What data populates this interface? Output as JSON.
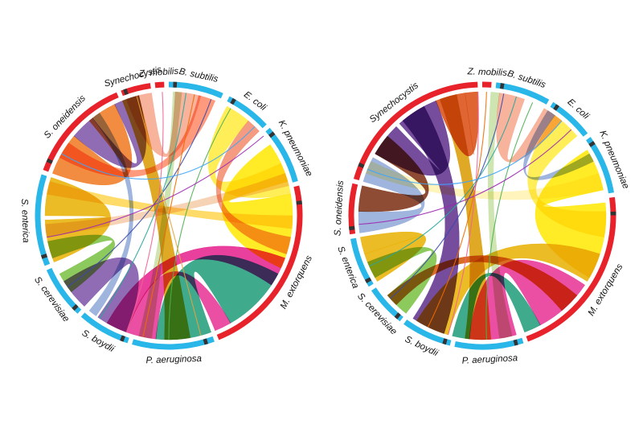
{
  "diagrams": [
    {
      "id": "left",
      "groups": [
        {
          "name": "B. subtilis",
          "start": 0,
          "end": 24,
          "color": "#29b6e8"
        },
        {
          "name": "E. coli",
          "start": 27,
          "end": 47,
          "color": "#29b6e8"
        },
        {
          "name": "K. pneumoniae",
          "start": 49,
          "end": 75,
          "color": "#29b6e8"
        },
        {
          "name": "M. extorquens",
          "start": 77,
          "end": 158,
          "color": "#e8222a"
        },
        {
          "name": "P. aeruginosa",
          "start": 160,
          "end": 196,
          "color": "#29b6e8"
        },
        {
          "name": "S. boydii",
          "start": 198,
          "end": 221,
          "color": "#29b6e8"
        },
        {
          "name": "S. cerevisiae",
          "start": 223,
          "end": 246,
          "color": "#29b6e8"
        },
        {
          "name": "S. enterica",
          "start": 248,
          "end": 288,
          "color": "#29b6e8"
        },
        {
          "name": "S. oneidensis",
          "start": 290,
          "end": 337,
          "color": "#e8222a"
        },
        {
          "name": "Synechocystis",
          "start": 339,
          "end": 352,
          "color": "#e8222a"
        },
        {
          "name": "Z. mobilis",
          "start": 354,
          "end": 358,
          "color": "#e8222a"
        }
      ],
      "chords": [
        {
          "a": [
            55,
            74
          ],
          "b": [
            80,
            115
          ],
          "color": "#ffe800"
        },
        {
          "a": [
            28,
            40
          ],
          "b": [
            65,
            80
          ],
          "color": "#ffeb3b"
        },
        {
          "a": [
            118,
            150
          ],
          "b": [
            160,
            186
          ],
          "color": "#1e9b78"
        },
        {
          "a": [
            150,
            158
          ],
          "b": [
            186,
            200
          ],
          "color": "#e83093"
        },
        {
          "a": [
            110,
            124
          ],
          "b": [
            200,
            210
          ],
          "color": "#e61e8c"
        },
        {
          "a": [
            290,
            310
          ],
          "b": [
            320,
            334
          ],
          "color": "#f07820"
        },
        {
          "a": [
            310,
            322
          ],
          "b": [
            334,
            346
          ],
          "color": "#7b52a6"
        },
        {
          "a": [
            248,
            268
          ],
          "b": [
            270,
            288
          ],
          "color": "#e8b000"
        },
        {
          "a": [
            223,
            238
          ],
          "b": [
            200,
            215
          ],
          "color": "#7b52a6"
        },
        {
          "a": [
            3,
            15
          ],
          "b": [
            340,
            352
          ],
          "color": "#f7a68c"
        },
        {
          "a": [
            40,
            47
          ],
          "b": [
            100,
            108
          ],
          "color": "#f28a6c"
        },
        {
          "a": [
            170,
            182
          ],
          "b": [
            338,
            346
          ],
          "color": "#d99a00"
        },
        {
          "a": [
            260,
            266
          ],
          "b": [
            70,
            76
          ],
          "color": "#f6cba8"
        },
        {
          "a": [
            232,
            242
          ],
          "b": [
            250,
            258
          ],
          "color": "#79c142"
        },
        {
          "a": [
            298,
            306
          ],
          "b": [
            14,
            22
          ],
          "color": "#ff8a65"
        },
        {
          "a": [
            280,
            286
          ],
          "b": [
            90,
            96
          ],
          "color": "#ffd54f"
        },
        {
          "a": [
            188,
            194
          ],
          "b": [
            2,
            6
          ],
          "color": "#c5e1a5"
        },
        {
          "a": [
            216,
            220
          ],
          "b": [
            322,
            326
          ],
          "color": "#8fa8d8"
        }
      ],
      "threads": [
        {
          "a": 20,
          "b": 235,
          "color": "#3949ab"
        },
        {
          "a": 30,
          "b": 180,
          "color": "#4caf50"
        },
        {
          "a": 12,
          "b": 192,
          "color": "#ef6c00"
        },
        {
          "a": 50,
          "b": 260,
          "color": "#9c27b0"
        },
        {
          "a": 357,
          "b": 200,
          "color": "#f06292"
        },
        {
          "a": 8,
          "b": 214,
          "color": "#26a69a"
        },
        {
          "a": 44,
          "b": 300,
          "color": "#42a5f5"
        },
        {
          "a": 165,
          "b": 345,
          "color": "#e6a23c"
        }
      ]
    },
    {
      "id": "right",
      "groups": [
        {
          "name": "Z. mobilis",
          "start": 0,
          "end": 4,
          "color": "#e8222a"
        },
        {
          "name": "B. subtilis",
          "start": 6,
          "end": 30,
          "color": "#29b6e8"
        },
        {
          "name": "E. coli",
          "start": 32,
          "end": 52,
          "color": "#29b6e8"
        },
        {
          "name": "K. pneumoniae",
          "start": 54,
          "end": 80,
          "color": "#29b6e8"
        },
        {
          "name": "M. extorquens",
          "start": 82,
          "end": 160,
          "color": "#e8222a"
        },
        {
          "name": "P. aeruginosa",
          "start": 162,
          "end": 192,
          "color": "#29b6e8"
        },
        {
          "name": "S. boydii",
          "start": 194,
          "end": 216,
          "color": "#29b6e8"
        },
        {
          "name": "S. cerevisiae",
          "start": 218,
          "end": 236,
          "color": "#29b6e8"
        },
        {
          "name": "S. enterica",
          "start": 238,
          "end": 260,
          "color": "#29b6e8"
        },
        {
          "name": "S. oneidensis",
          "start": 262,
          "end": 284,
          "color": "#e8222a"
        },
        {
          "name": "Synechocystis",
          "start": 286,
          "end": 358,
          "color": "#e8222a"
        }
      ],
      "chords": [
        {
          "a": [
            58,
            78
          ],
          "b": [
            84,
            120
          ],
          "color": "#ffe800"
        },
        {
          "a": [
            36,
            50
          ],
          "b": [
            88,
            100
          ],
          "color": "#ffeb3b"
        },
        {
          "a": [
            124,
            152
          ],
          "b": [
            164,
            186
          ],
          "color": "#e83093"
        },
        {
          "a": [
            152,
            160
          ],
          "b": [
            186,
            194
          ],
          "color": "#1e9b78"
        },
        {
          "a": [
            108,
            122
          ],
          "b": [
            196,
            212
          ],
          "color": "#e8b000"
        },
        {
          "a": [
            300,
            316
          ],
          "b": [
            318,
            338
          ],
          "color": "#5e2d8c"
        },
        {
          "a": [
            338,
            352
          ],
          "b": [
            352,
            358
          ],
          "color": "#d94a0f"
        },
        {
          "a": [
            286,
            298
          ],
          "b": [
            262,
            272
          ],
          "color": "#8fa8d8"
        },
        {
          "a": [
            238,
            252
          ],
          "b": [
            252,
            260
          ],
          "color": "#e8b000"
        },
        {
          "a": [
            272,
            284
          ],
          "b": [
            300,
            310
          ],
          "color": "#7b2d12"
        },
        {
          "a": [
            198,
            214
          ],
          "b": [
            320,
            332
          ],
          "color": "#5e2d8c"
        },
        {
          "a": [
            218,
            230
          ],
          "b": [
            240,
            248
          ],
          "color": "#79c142"
        },
        {
          "a": [
            8,
            20
          ],
          "b": [
            30,
            40
          ],
          "color": "#f7a68c"
        },
        {
          "a": [
            32,
            36
          ],
          "b": [
            60,
            64
          ],
          "color": "#8fa8d8"
        },
        {
          "a": [
            176,
            188
          ],
          "b": [
            340,
            348
          ],
          "color": "#d99a00"
        },
        {
          "a": [
            290,
            296
          ],
          "b": [
            70,
            78
          ],
          "color": "#fff3b0"
        },
        {
          "a": [
            224,
            230
          ],
          "b": [
            130,
            140
          ],
          "color": "#d35400"
        },
        {
          "a": [
            166,
            172
          ],
          "b": [
            4,
            8
          ],
          "color": "#c5e1a5"
        }
      ],
      "threads": [
        {
          "a": 10,
          "b": 228,
          "color": "#3949ab"
        },
        {
          "a": 24,
          "b": 178,
          "color": "#4caf50"
        },
        {
          "a": 2,
          "b": 206,
          "color": "#ef6c00"
        },
        {
          "a": 46,
          "b": 266,
          "color": "#9c27b0"
        },
        {
          "a": 358,
          "b": 196,
          "color": "#f06292"
        },
        {
          "a": 16,
          "b": 246,
          "color": "#26a69a"
        },
        {
          "a": 40,
          "b": 292,
          "color": "#42a5f5"
        }
      ]
    }
  ]
}
